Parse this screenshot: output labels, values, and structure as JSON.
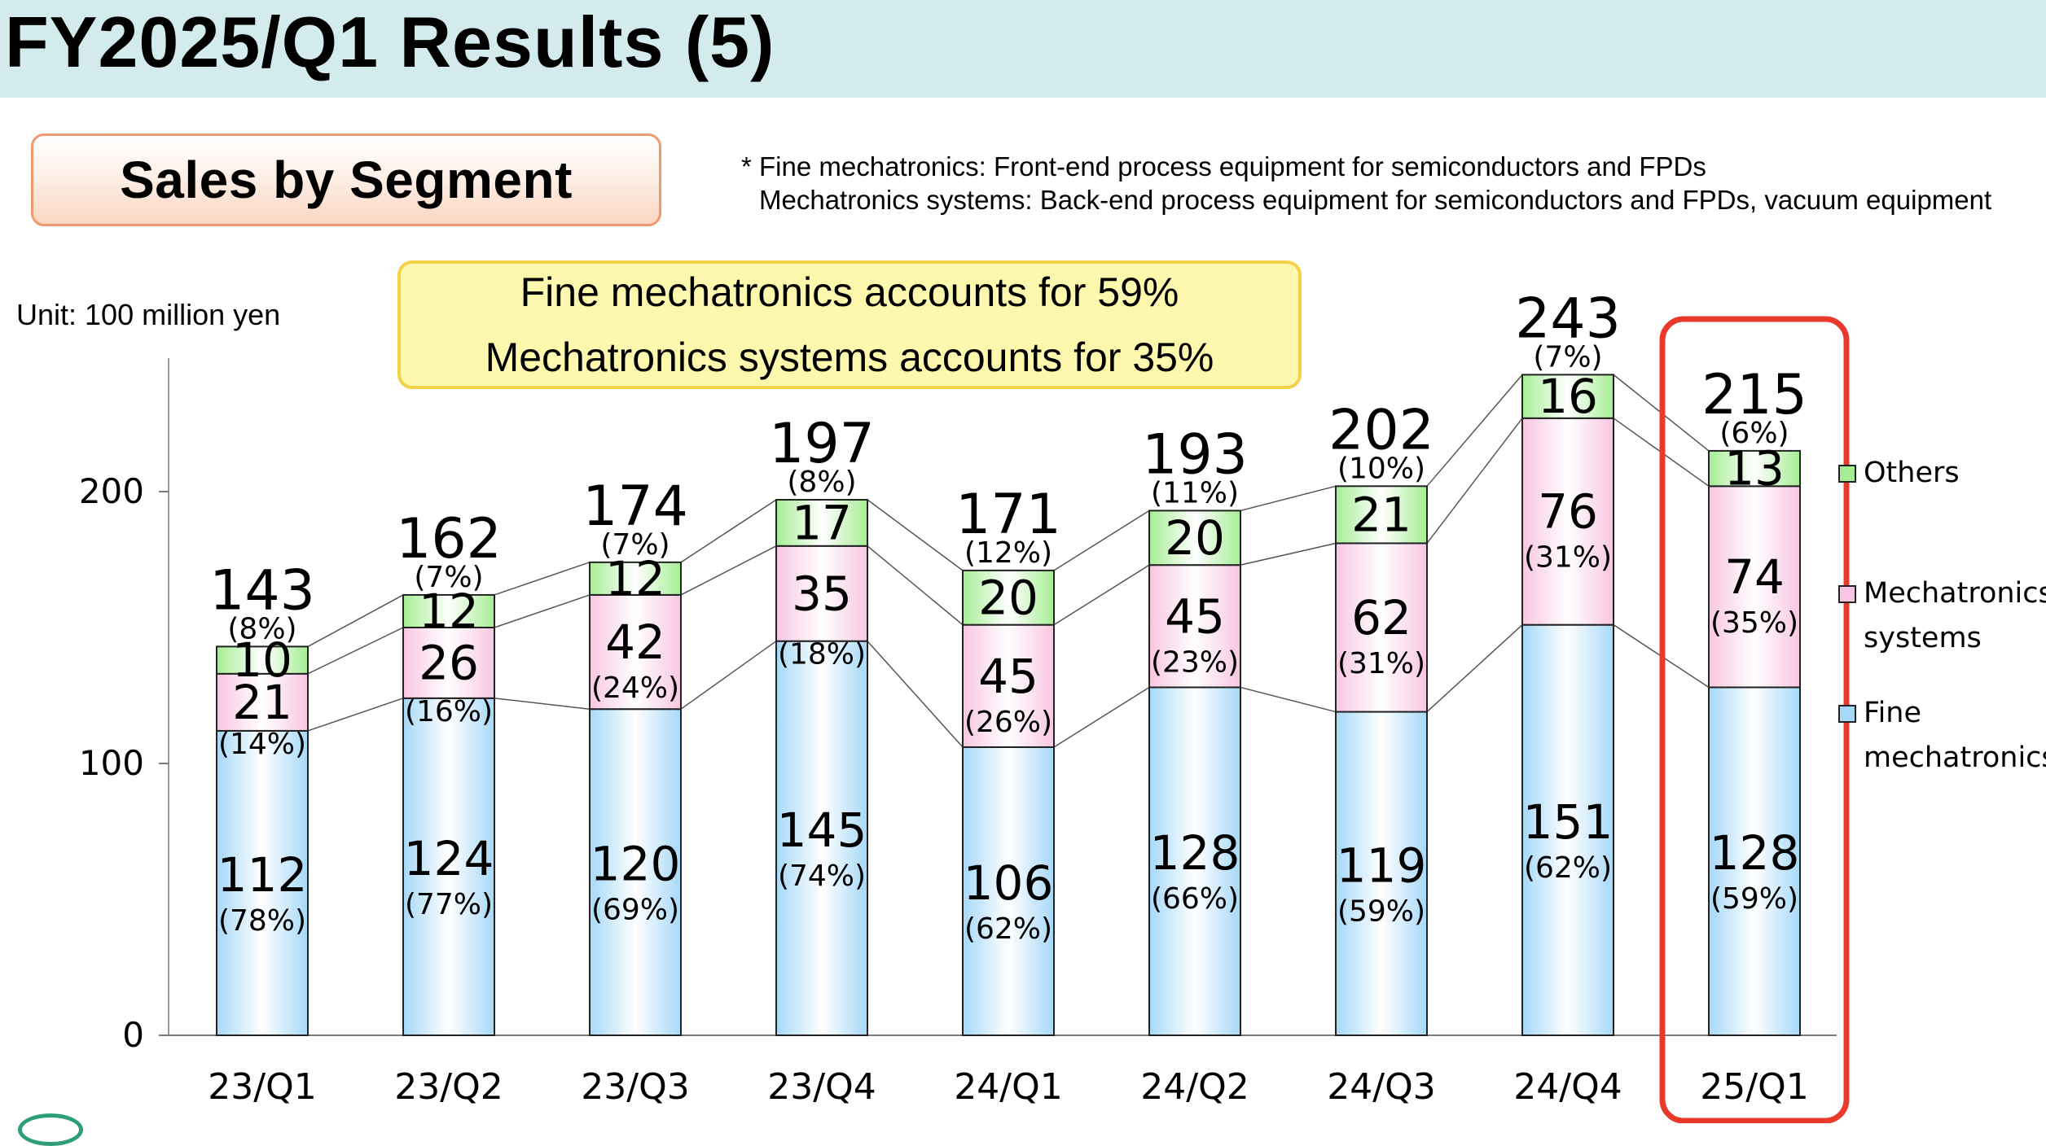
{
  "page": {
    "title": "FY2025/Q1 Results (5)",
    "segment_label": "Sales by Segment",
    "footnote_line1": "* Fine mechatronics: Front-end process equipment for semiconductors and FPDs",
    "footnote_line2": "Mechatronics systems: Back-end process equipment for semiconductors and FPDs, vacuum equipment",
    "unit": "Unit: 100 million yen",
    "callout_line1": "Fine mechatronics accounts for 59%",
    "callout_line2": "Mechatronics systems accounts for 35%"
  },
  "colors": {
    "title_bar": "#d3ebec",
    "fine": "#a6d8f8",
    "systems": "#f8c6e2",
    "others": "#a6ee94",
    "highlight": "#e8392a"
  },
  "chart_data": {
    "type": "bar",
    "stacked": true,
    "categories": [
      "23/Q1",
      "23/Q2",
      "23/Q3",
      "23/Q4",
      "24/Q1",
      "24/Q2",
      "24/Q3",
      "24/Q4",
      "25/Q1"
    ],
    "series": [
      {
        "name": "Fine mechatronics",
        "legend_lines": [
          "Fine",
          "mechatronics"
        ],
        "values": [
          112,
          124,
          120,
          145,
          106,
          128,
          119,
          151,
          128
        ],
        "pct_labels": [
          "(78%)",
          "(77%)",
          "(69%)",
          "(74%)",
          "(62%)",
          "(66%)",
          "(59%)",
          "(62%)",
          "(59%)"
        ]
      },
      {
        "name": "Mechatronics systems",
        "legend_lines": [
          "Mechatronics",
          "systems"
        ],
        "values": [
          21,
          26,
          42,
          35,
          45,
          45,
          62,
          76,
          74
        ],
        "pct_labels": [
          "(14%)",
          "(16%)",
          "(24%)",
          "(18%)",
          "(26%)",
          "(23%)",
          "(31%)",
          "(31%)",
          "(35%)"
        ]
      },
      {
        "name": "Others",
        "legend_lines": [
          "Others"
        ],
        "values": [
          10,
          12,
          12,
          17,
          20,
          20,
          21,
          16,
          13
        ],
        "pct_labels": [
          "(8%)",
          "(7%)",
          "(7%)",
          "(8%)",
          "(12%)",
          "(11%)",
          "(10%)",
          "(7%)",
          "(6%)"
        ]
      }
    ],
    "totals": [
      143,
      162,
      174,
      197,
      171,
      193,
      202,
      243,
      215
    ],
    "ylim": [
      0,
      250
    ],
    "yticks": [
      0,
      100,
      200
    ],
    "highlight_category": "25/Q1",
    "grid": false,
    "legend_position": "right",
    "xlabel": "",
    "ylabel": ""
  }
}
